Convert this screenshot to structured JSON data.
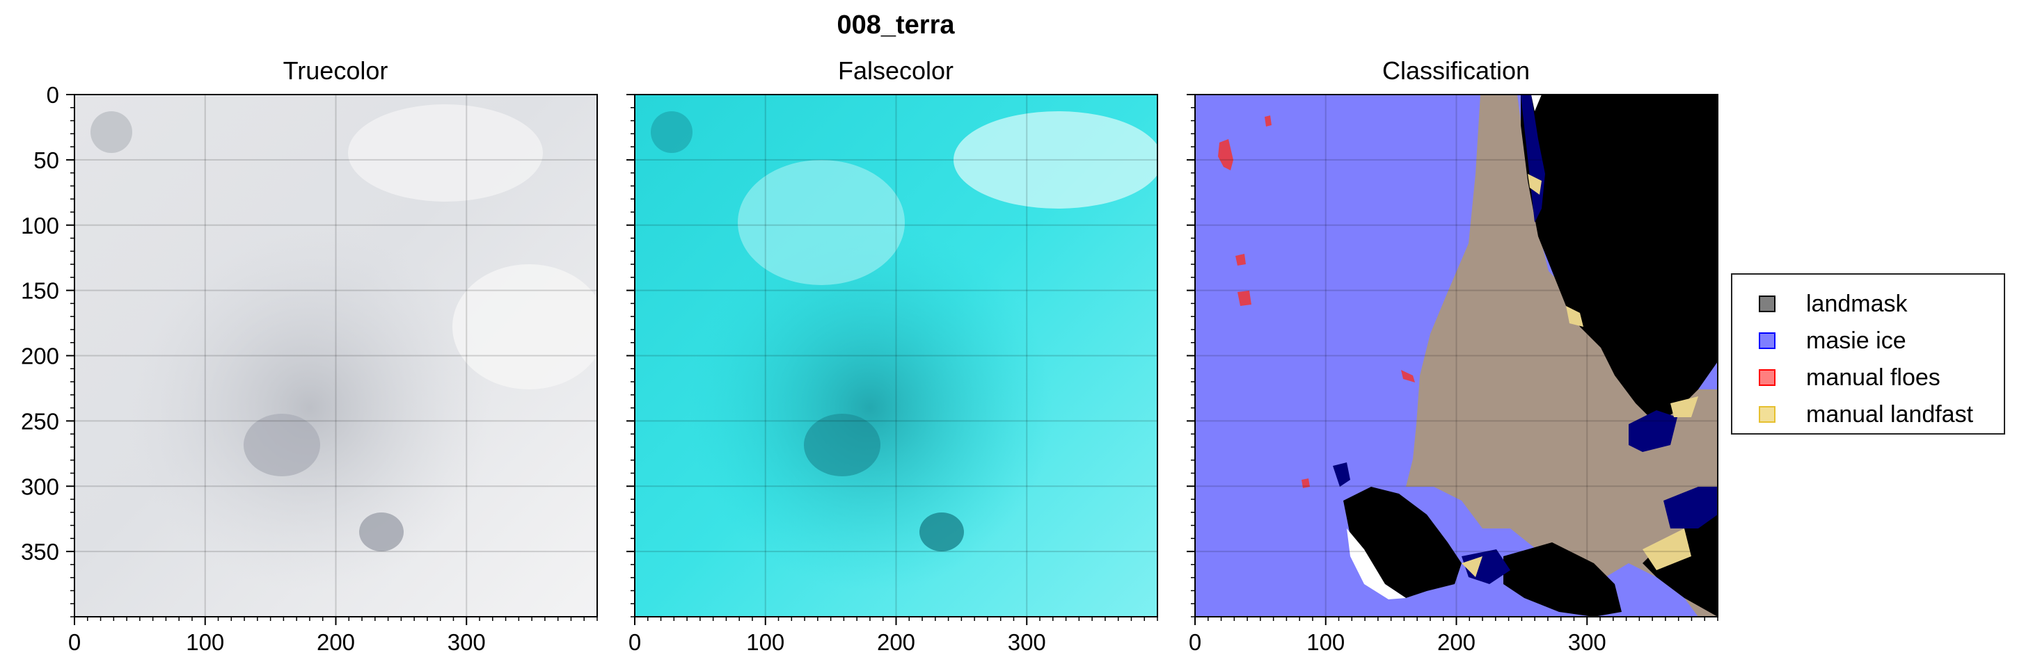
{
  "figure": {
    "suptitle": "008_terra"
  },
  "chart_data": [
    {
      "type": "image",
      "title": "Truecolor",
      "xlim": [
        0,
        400
      ],
      "ylim": [
        400,
        0
      ],
      "xticks": [
        0,
        100,
        200,
        300
      ],
      "yticks": [
        0,
        50,
        100,
        150,
        200,
        250,
        300,
        350
      ],
      "grid": true
    },
    {
      "type": "image",
      "title": "Falsecolor",
      "xlim": [
        0,
        400
      ],
      "ylim": [
        400,
        0
      ],
      "xticks": [
        0,
        100,
        200,
        300
      ],
      "yticks": [
        0,
        50,
        100,
        150,
        200,
        250,
        300,
        350
      ],
      "grid": true
    },
    {
      "type": "image",
      "title": "Classification",
      "xlim": [
        0,
        400
      ],
      "ylim": [
        400,
        0
      ],
      "xticks": [
        0,
        100,
        200,
        300
      ],
      "yticks": [
        0,
        50,
        100,
        150,
        200,
        250,
        300,
        350
      ],
      "grid": true,
      "legend_position": "right",
      "legend": [
        {
          "label": "landmask",
          "color": "#000000"
        },
        {
          "label": "masie ice",
          "color": "#0000ff"
        },
        {
          "label": "manual floes",
          "color": "#ff0000"
        },
        {
          "label": "manual landfast",
          "color": "#e6c030"
        }
      ]
    }
  ]
}
